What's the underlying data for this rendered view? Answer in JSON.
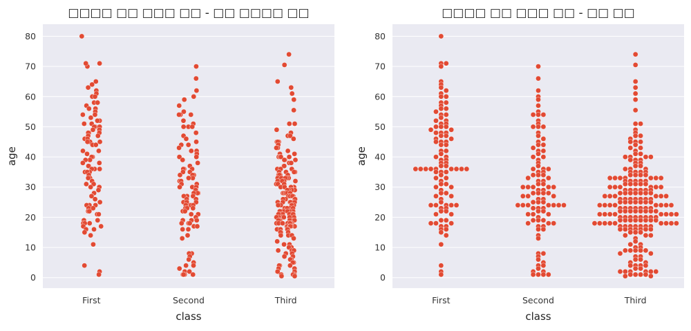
{
  "figure": {
    "background": "#ffffff",
    "plot_background": "#eaeaf2",
    "grid_color": "#ffffff",
    "point_color": "#e24a33",
    "point_edge": "#ffffff"
  },
  "chart_data": [
    {
      "type": "scatter",
      "style": "strip (jittered)",
      "title": "□□□□ □□ □□□ □□ - □□ □□□□ □□",
      "xlabel": "class",
      "ylabel": "age",
      "categories": [
        "First",
        "Second",
        "Third"
      ],
      "ylim": [
        -3.5,
        84
      ],
      "yticks": [
        0,
        10,
        20,
        30,
        40,
        50,
        60,
        70,
        80
      ],
      "grid": "horizontal",
      "points": {
        "First": [
          80,
          71,
          70,
          71,
          65,
          64,
          63,
          62,
          61,
          60,
          60,
          58,
          58,
          57,
          56,
          56,
          55,
          54,
          54,
          53,
          52,
          52,
          51,
          51,
          50,
          50,
          50,
          49,
          49,
          48,
          48,
          48,
          47,
          47,
          46,
          46,
          45,
          45,
          45,
          44,
          44,
          42,
          42,
          41,
          40,
          40,
          39,
          39,
          38,
          38,
          37,
          37,
          36,
          36,
          36,
          35,
          35,
          35,
          34,
          33,
          33,
          32,
          31,
          31,
          30,
          30,
          29,
          28,
          28,
          27,
          27,
          26,
          25,
          24,
          24,
          24,
          23,
          23,
          22,
          22,
          21,
          21,
          19,
          19,
          18,
          18,
          18,
          17,
          17,
          16,
          16,
          15,
          14,
          11,
          4,
          2,
          1
        ],
        "Second": [
          70,
          66,
          62,
          60,
          59,
          57,
          55,
          54,
          54,
          54,
          52,
          51,
          50,
          50,
          50,
          48,
          47,
          46,
          45,
          44,
          44,
          43,
          42,
          42,
          41,
          40,
          40,
          39,
          38,
          37,
          36,
          36,
          36,
          35,
          35,
          34,
          34,
          34,
          33,
          33,
          32,
          32,
          31,
          31,
          30,
          30,
          30,
          29,
          29,
          28,
          28,
          28,
          27,
          27,
          27,
          26,
          26,
          25,
          25,
          25,
          24,
          24,
          24,
          24,
          23,
          23,
          23,
          22,
          22,
          21,
          21,
          21,
          20,
          19,
          19,
          19,
          18,
          18,
          18,
          17,
          17,
          16,
          16,
          14,
          13,
          8,
          8,
          7,
          6,
          5,
          4,
          4,
          3,
          2,
          2,
          1,
          1,
          1,
          1
        ],
        "Third": [
          74,
          70.5,
          65,
          63,
          61,
          59,
          55.5,
          51,
          51,
          49,
          48,
          47,
          47,
          46,
          45,
          45,
          45,
          44,
          43,
          43,
          42,
          41,
          41,
          40,
          40,
          40,
          40,
          39,
          39,
          39,
          38,
          38,
          37,
          37,
          36,
          36,
          36,
          35,
          35,
          35,
          35,
          34,
          34,
          34,
          34,
          33,
          33,
          33,
          33,
          33,
          32,
          32,
          32,
          32,
          31,
          31,
          31,
          31,
          30,
          30,
          30,
          30,
          30,
          29,
          29,
          29,
          29,
          29,
          28,
          28,
          28,
          28,
          28,
          28,
          27,
          27,
          27,
          27,
          27,
          26,
          26,
          26,
          26,
          26,
          26,
          25,
          25,
          25,
          25,
          25,
          25,
          24,
          24,
          24,
          24,
          24,
          24,
          24,
          23,
          23,
          23,
          23,
          23,
          23,
          22,
          22,
          22,
          22,
          22,
          22,
          22,
          21,
          21,
          21,
          21,
          21,
          21,
          21,
          20,
          20,
          20,
          20,
          20,
          20,
          20,
          19,
          19,
          19,
          19,
          19,
          19,
          19,
          18,
          18,
          18,
          18,
          18,
          18,
          18,
          18,
          17,
          17,
          17,
          17,
          17,
          17,
          16,
          16,
          16,
          16,
          16,
          16,
          15,
          15,
          15,
          14,
          14,
          14,
          13,
          12,
          11,
          11,
          10,
          10,
          9,
          9,
          9,
          8,
          8,
          7,
          7,
          6,
          6,
          5,
          5,
          4,
          4,
          4,
          3,
          3,
          2,
          2,
          2,
          1,
          1,
          1,
          0.5,
          0.5
        ]
      }
    },
    {
      "type": "scatter",
      "style": "swarm",
      "title": "□□□□ □□ □□□ □□ - □□ □□",
      "xlabel": "class",
      "ylabel": "age",
      "categories": [
        "First",
        "Second",
        "Third"
      ],
      "ylim": [
        -3.5,
        84
      ],
      "yticks": [
        0,
        10,
        20,
        30,
        40,
        50,
        60,
        70,
        80
      ],
      "grid": "horizontal",
      "points": {
        "First": [
          80,
          71,
          70,
          71,
          65,
          64,
          63,
          62,
          61,
          60,
          60,
          58,
          58,
          57,
          56,
          56,
          55,
          54,
          54,
          53,
          52,
          52,
          51,
          51,
          50,
          50,
          50,
          49,
          49,
          48,
          48,
          48,
          47,
          47,
          46,
          46,
          45,
          45,
          45,
          44,
          44,
          42,
          42,
          41,
          40,
          40,
          39,
          39,
          38,
          38,
          37,
          37,
          36,
          36,
          36,
          36,
          36,
          36,
          36,
          36,
          36,
          35,
          35,
          35,
          34,
          33,
          33,
          32,
          31,
          31,
          30,
          30,
          29,
          28,
          28,
          27,
          27,
          26,
          25,
          24,
          24,
          24,
          24,
          24,
          23,
          23,
          22,
          22,
          21,
          21,
          19,
          19,
          18,
          18,
          18,
          17,
          17,
          16,
          16,
          15,
          14,
          11,
          4,
          2,
          1
        ],
        "Second": [
          70,
          66,
          62,
          60,
          59,
          57,
          55,
          54,
          54,
          54,
          52,
          51,
          50,
          50,
          50,
          48,
          47,
          46,
          45,
          44,
          44,
          43,
          42,
          42,
          41,
          40,
          40,
          39,
          38,
          37,
          36,
          36,
          36,
          35,
          35,
          34,
          34,
          34,
          33,
          33,
          32,
          32,
          31,
          31,
          30,
          30,
          30,
          30,
          30,
          29,
          29,
          28,
          28,
          28,
          28,
          27,
          27,
          27,
          26,
          26,
          25,
          25,
          25,
          24,
          24,
          24,
          24,
          24,
          24,
          24,
          23,
          23,
          23,
          22,
          22,
          21,
          21,
          21,
          20,
          19,
          19,
          19,
          18,
          18,
          18,
          17,
          17,
          16,
          16,
          14,
          13,
          8,
          8,
          7,
          6,
          5,
          4,
          4,
          3,
          2,
          2,
          1,
          1,
          1,
          1
        ],
        "Third": [
          74,
          70.5,
          65,
          63,
          61,
          59,
          55.5,
          51,
          51,
          49,
          48,
          47,
          47,
          46,
          45,
          45,
          45,
          44,
          43,
          43,
          42,
          41,
          41,
          40,
          40,
          40,
          40,
          39,
          39,
          39,
          38,
          38,
          37,
          37,
          36,
          36,
          36,
          35,
          35,
          35,
          35,
          34,
          34,
          34,
          34,
          33,
          33,
          33,
          33,
          33,
          33,
          33,
          32,
          32,
          32,
          32,
          32,
          31,
          31,
          31,
          31,
          31,
          30,
          30,
          30,
          30,
          30,
          30,
          29,
          29,
          29,
          29,
          29,
          29,
          28,
          28,
          28,
          28,
          28,
          28,
          28,
          27,
          27,
          27,
          27,
          27,
          27,
          26,
          26,
          26,
          26,
          26,
          26,
          26,
          25,
          25,
          25,
          25,
          25,
          25,
          25,
          24,
          24,
          24,
          24,
          24,
          24,
          24,
          24,
          23,
          23,
          23,
          23,
          23,
          23,
          23,
          22,
          22,
          22,
          22,
          22,
          22,
          22,
          22,
          21,
          21,
          21,
          21,
          21,
          21,
          21,
          21,
          20,
          20,
          20,
          20,
          20,
          20,
          20,
          20,
          19,
          19,
          19,
          19,
          19,
          19,
          19,
          19,
          18,
          18,
          18,
          18,
          18,
          18,
          18,
          18,
          18,
          17,
          17,
          17,
          17,
          17,
          17,
          17,
          16,
          16,
          16,
          16,
          16,
          16,
          16,
          15,
          15,
          15,
          14,
          14,
          14,
          13,
          12,
          11,
          11,
          10,
          10,
          9,
          9,
          9,
          9,
          9,
          8,
          8,
          7,
          7,
          6,
          6,
          5,
          5,
          4,
          4,
          4,
          4,
          3,
          3,
          2,
          2,
          2,
          2,
          2,
          2,
          1,
          1,
          1,
          1,
          0.5,
          0.5
        ]
      }
    }
  ]
}
